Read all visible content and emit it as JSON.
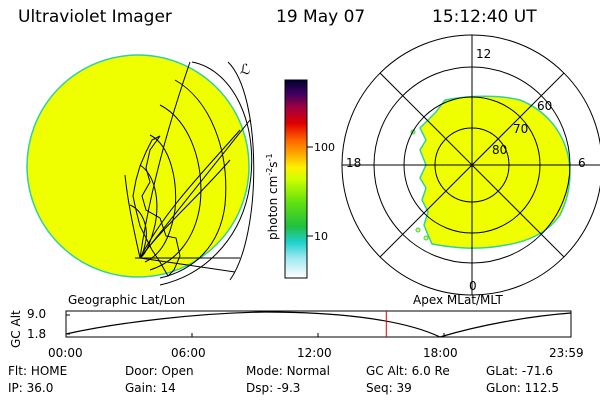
{
  "header": {
    "title": "Ultraviolet Imager",
    "date": "19 May 07",
    "time": "15:12:40 UT"
  },
  "colorbar": {
    "unit_label": "photon cm",
    "unit_exp1": "-2",
    "unit_s": "s",
    "unit_exp2": "-1",
    "ticks": [
      "100",
      "10"
    ]
  },
  "panels": {
    "left_caption": "Geographic Lat/Lon",
    "right_caption": "Apex MLat/MLT",
    "polar_labels": {
      "top": "12",
      "left": "18",
      "right": "6",
      "bottom": "0"
    },
    "lat_labels": [
      "60",
      "70",
      "80"
    ]
  },
  "timeline": {
    "axis_label": "GC Alt",
    "y_ticks": [
      "9.0",
      "1.8"
    ],
    "x_ticks": [
      "00:00",
      "06:00",
      "12:00",
      "18:00",
      "23:59"
    ],
    "current_marker_hour": 15.21
  },
  "status": {
    "row1": [
      {
        "label": "Flt:",
        "value": "HOME"
      },
      {
        "label": "Door:",
        "value": "Open"
      },
      {
        "label": "Mode:",
        "value": "Normal"
      },
      {
        "label": "GC Alt:",
        "value": "6.0 Re"
      },
      {
        "label": "GLat:",
        "value": "-71.6"
      }
    ],
    "row2": [
      {
        "label": "IP:",
        "value": "36.0"
      },
      {
        "label": "Gain:",
        "value": "14"
      },
      {
        "label": "Dsp:",
        "value": "-9.3"
      },
      {
        "label": "Seq:",
        "value": "39"
      },
      {
        "label": "GLon:",
        "value": "112.5"
      }
    ]
  },
  "colors": {
    "fill": "#f0ff00",
    "edge": "#30d0a0"
  }
}
